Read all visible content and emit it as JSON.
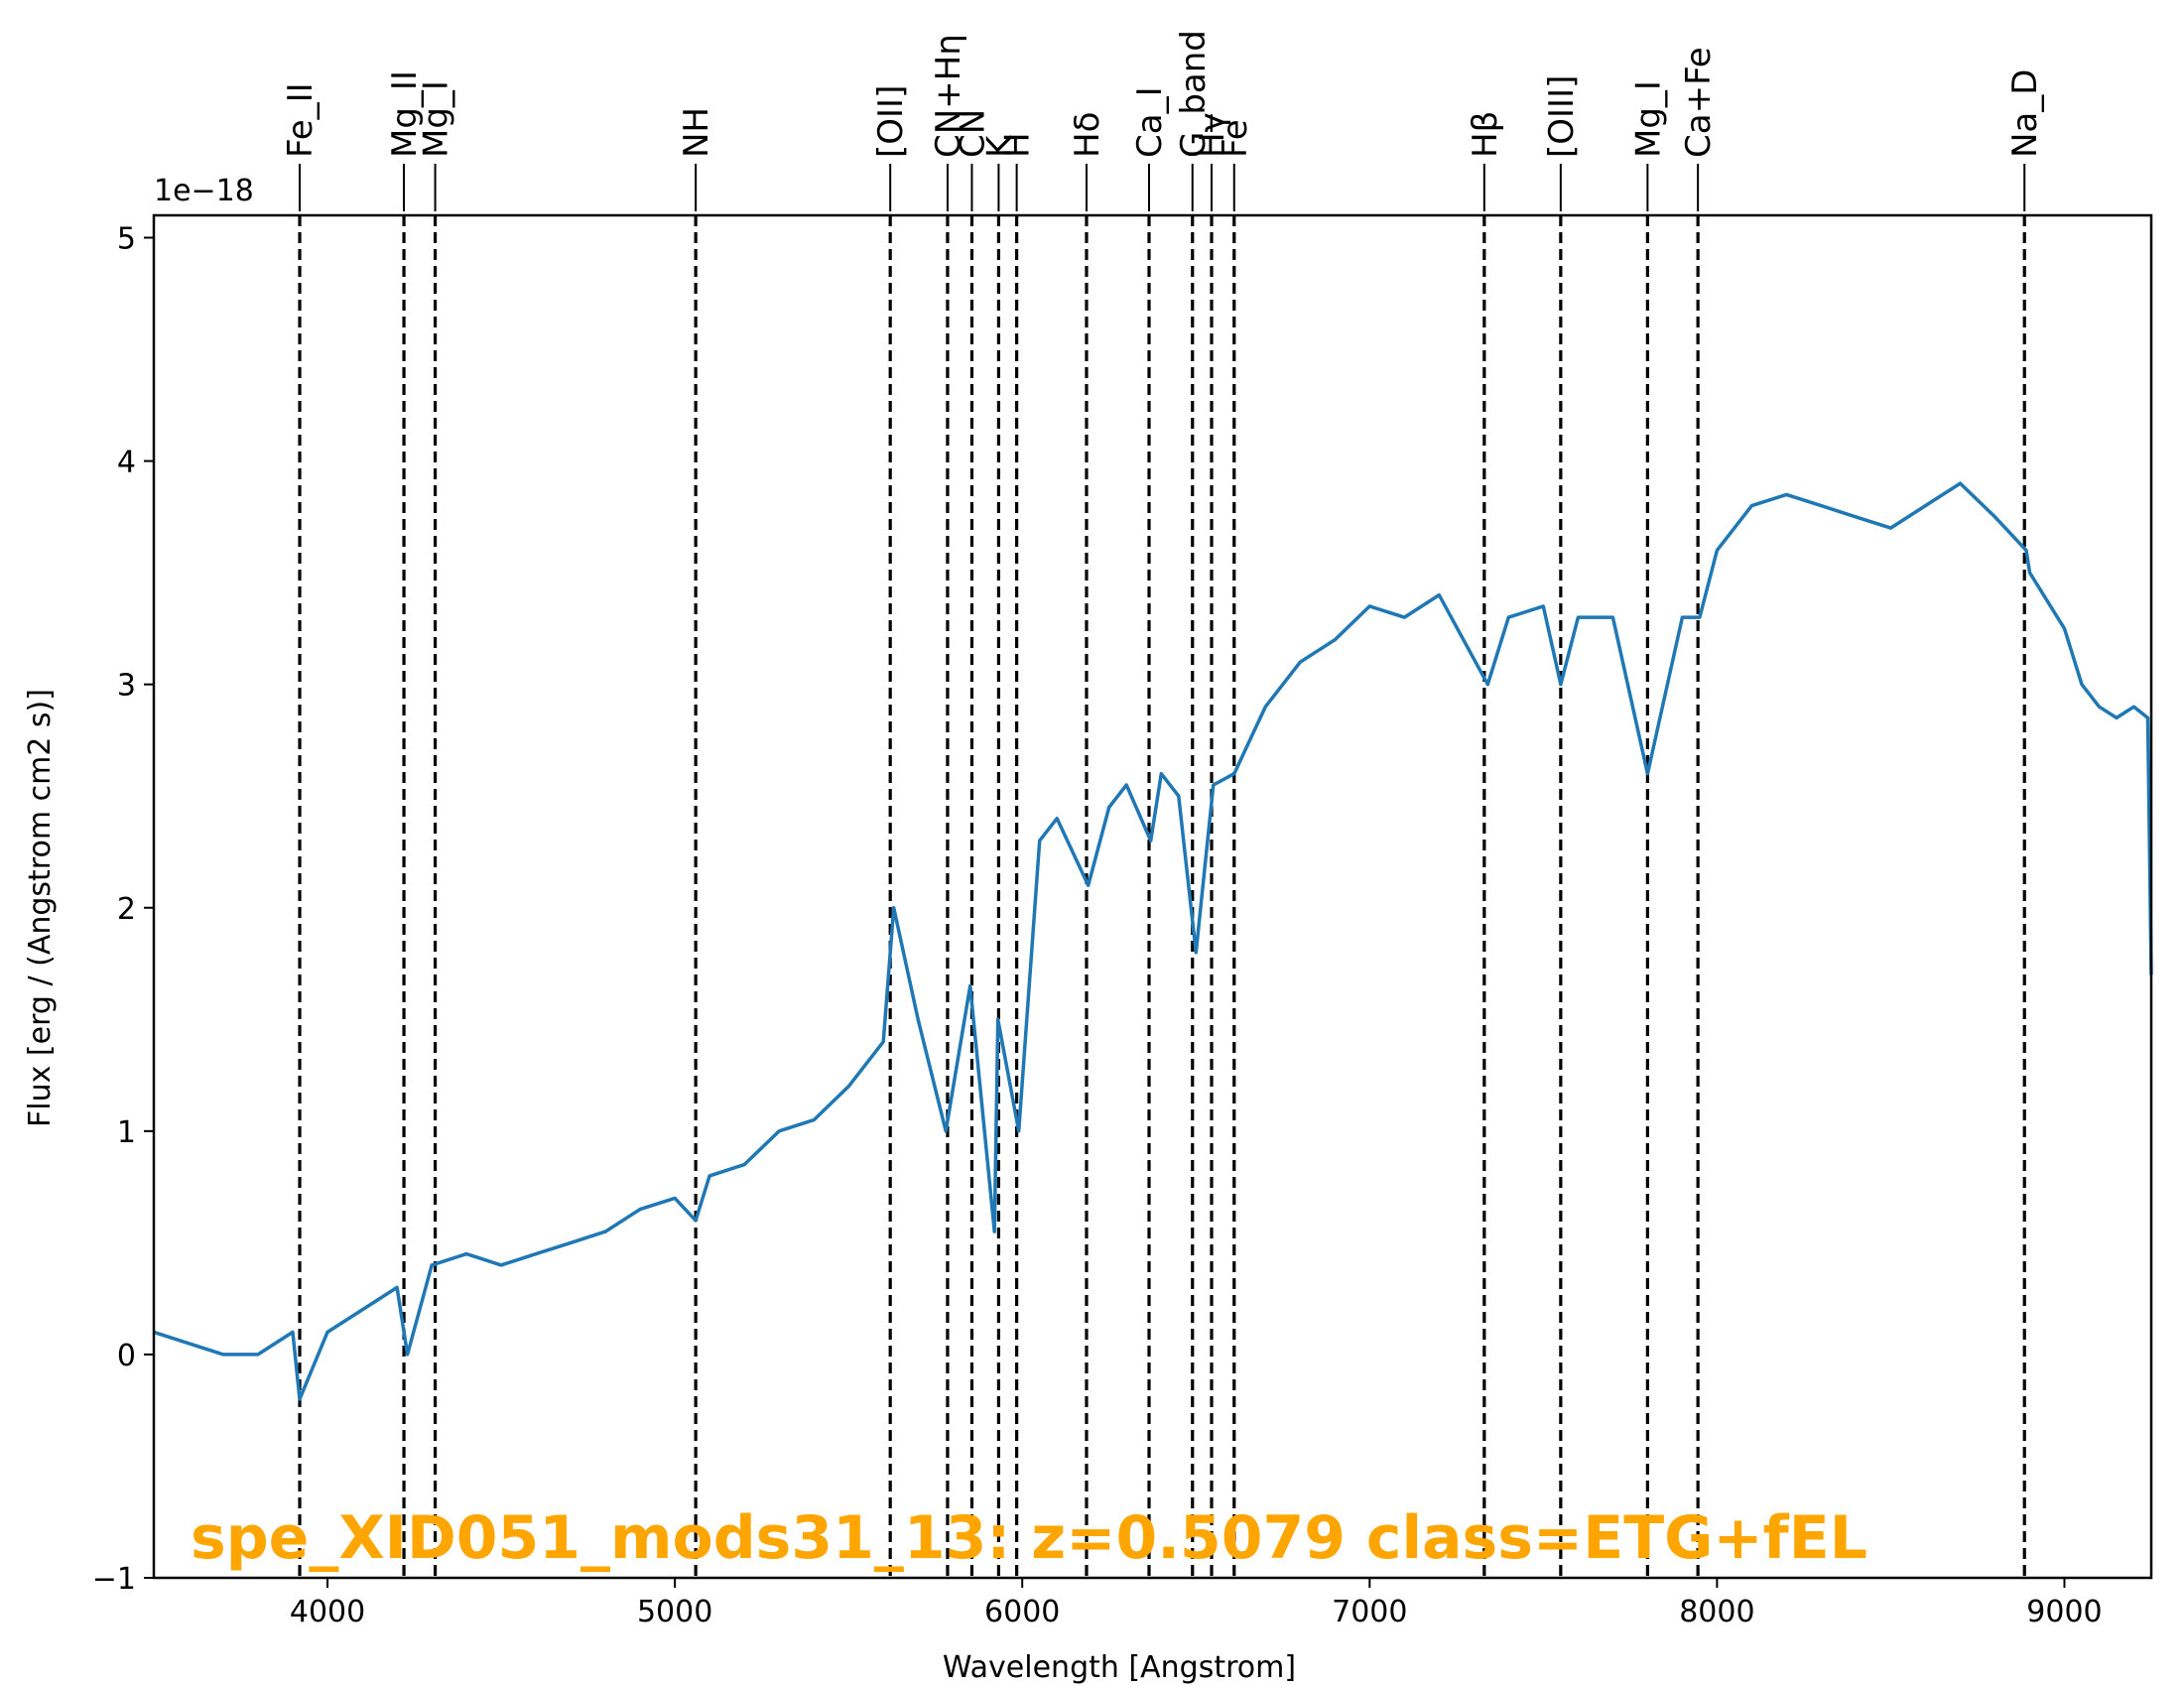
{
  "chart_data": {
    "type": "line",
    "xlabel": "Wavelength [Angstrom]",
    "ylabel": "Flux [erg / (Angstrom cm2 s)]",
    "y_offset_label": "1e−18",
    "xlim": [
      3500,
      9250
    ],
    "ylim": [
      -1.0,
      5.1
    ],
    "xticks": [
      4000,
      5000,
      6000,
      7000,
      8000,
      9000
    ],
    "xtick_labels": [
      "4000",
      "5000",
      "6000",
      "7000",
      "8000",
      "9000"
    ],
    "yticks": [
      -1,
      0,
      1,
      2,
      3,
      4,
      5
    ],
    "ytick_labels": [
      "−1",
      "0",
      "1",
      "2",
      "3",
      "4",
      "5"
    ],
    "grid": false,
    "series": [
      {
        "color": "#1f77b4",
        "x": [
          3500,
          3600,
          3700,
          3800,
          3900,
          3920,
          4000,
          4100,
          4200,
          4230,
          4300,
          4400,
          4500,
          4600,
          4700,
          4800,
          4900,
          5000,
          5060,
          5100,
          5200,
          5300,
          5400,
          5500,
          5600,
          5630,
          5700,
          5780,
          5850,
          5920,
          5930,
          5990,
          6050,
          6100,
          6190,
          6250,
          6300,
          6370,
          6400,
          6450,
          6500,
          6550,
          6610,
          6700,
          6800,
          6900,
          7000,
          7100,
          7200,
          7340,
          7400,
          7500,
          7550,
          7600,
          7700,
          7800,
          7900,
          7950,
          8000,
          8100,
          8200,
          8300,
          8400,
          8500,
          8600,
          8700,
          8800,
          8890,
          8900,
          9000,
          9050,
          9100,
          9150,
          9200,
          9240,
          9250
        ],
        "y": [
          0.1,
          0.05,
          0.0,
          0.0,
          0.1,
          -0.2,
          0.1,
          0.2,
          0.3,
          0.0,
          0.4,
          0.45,
          0.4,
          0.45,
          0.5,
          0.55,
          0.65,
          0.7,
          0.6,
          0.8,
          0.85,
          1.0,
          1.05,
          1.2,
          1.4,
          2.0,
          1.5,
          1.0,
          1.65,
          0.55,
          1.5,
          1.0,
          2.3,
          2.4,
          2.1,
          2.45,
          2.55,
          2.3,
          2.6,
          2.5,
          1.8,
          2.55,
          2.6,
          2.9,
          3.1,
          3.2,
          3.35,
          3.3,
          3.4,
          3.0,
          3.3,
          3.35,
          3.0,
          3.3,
          3.3,
          2.6,
          3.3,
          3.3,
          3.6,
          3.8,
          3.85,
          3.8,
          3.75,
          3.7,
          3.8,
          3.9,
          3.75,
          3.6,
          3.5,
          3.25,
          3.0,
          2.9,
          2.85,
          2.9,
          2.85,
          1.7
        ]
      }
    ],
    "lines": [
      {
        "label": "Fe_II",
        "x": 3920
      },
      {
        "label": "Mg_II",
        "x": 4220
      },
      {
        "label": "Mg_I",
        "x": 4310
      },
      {
        "label": "NH",
        "x": 5060
      },
      {
        "label": "[OII]",
        "x": 5620
      },
      {
        "label": "CN+Hη",
        "x": 5785
      },
      {
        "label": "CN",
        "x": 5855
      },
      {
        "label": "K",
        "x": 5932
      },
      {
        "label": "H",
        "x": 5984
      },
      {
        "label": "Hδ",
        "x": 6185
      },
      {
        "label": "Ca_I",
        "x": 6365
      },
      {
        "label": "G_band",
        "x": 6490
      },
      {
        "label": "Hγ",
        "x": 6545
      },
      {
        "label": "Fe",
        "x": 6610
      },
      {
        "label": "Hβ",
        "x": 7330
      },
      {
        "label": "[OIII]",
        "x": 7550
      },
      {
        "label": "Mg_I",
        "x": 7800
      },
      {
        "label": "Ca+Fe",
        "x": 7945
      },
      {
        "label": "Na_D",
        "x": 8885
      }
    ],
    "annotation": {
      "text": "spe_XID051_mods31_13: z=0.5079 class=ETG+fEL",
      "color": "#ffa500"
    }
  }
}
